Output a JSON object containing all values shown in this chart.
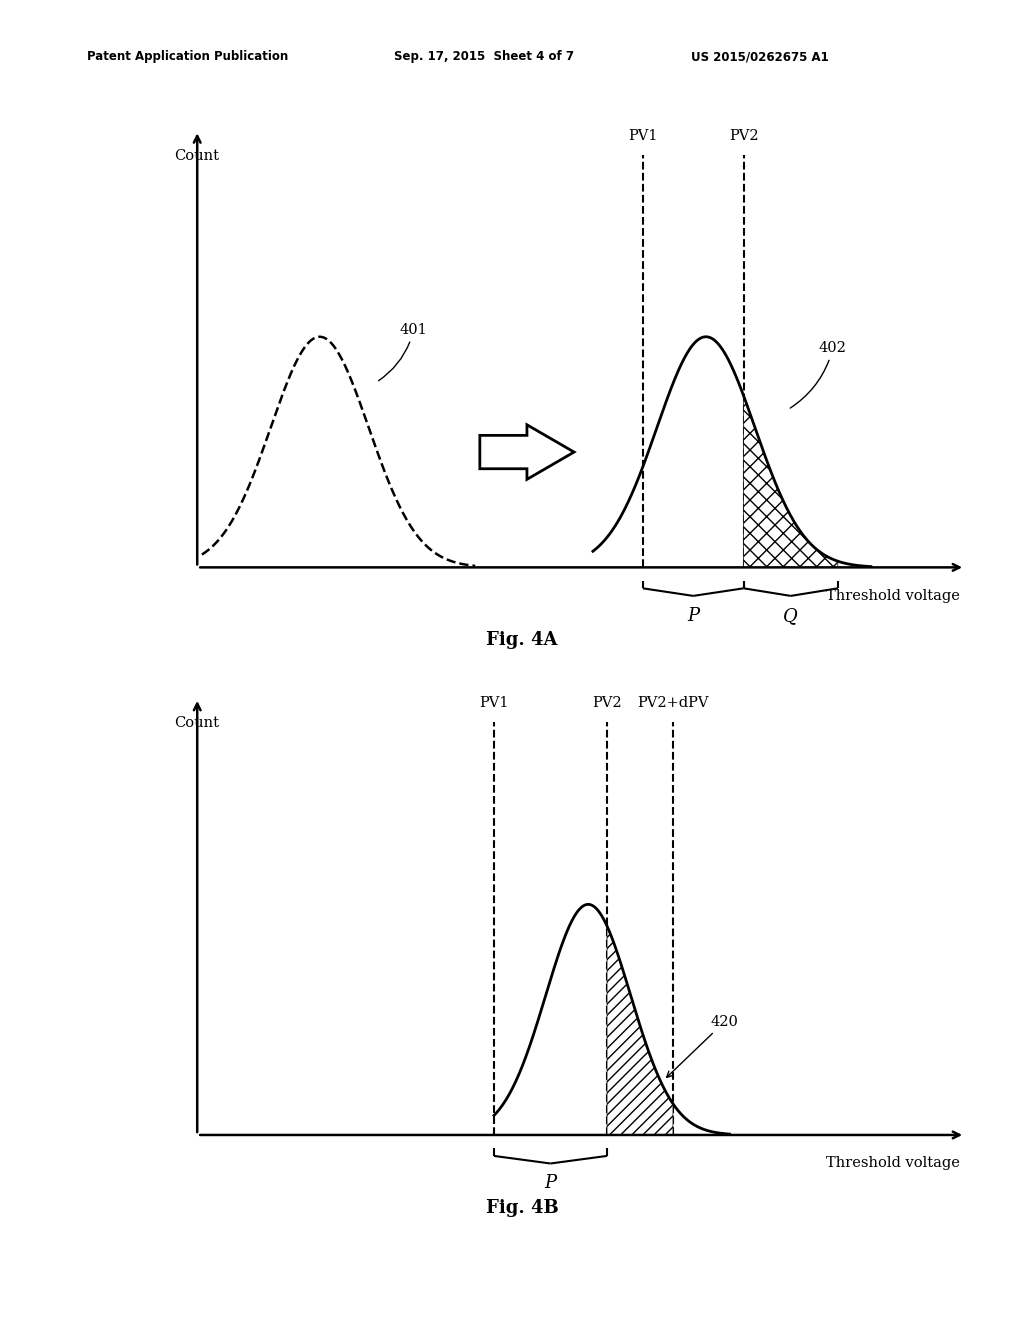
{
  "bg_color": "#ffffff",
  "header_left": "Patent Application Publication",
  "header_mid": "Sep. 17, 2015  Sheet 4 of 7",
  "header_right": "US 2015/0262675 A1",
  "fig4a_title": "Fig. 4A",
  "fig4b_title": "Fig. 4B",
  "count_label": "Count",
  "threshold_label": "Threshold voltage",
  "label_401": "401",
  "label_402": "402",
  "label_420": "420",
  "label_P_4a": "P",
  "label_Q_4a": "Q",
  "label_PV1_4a": "PV1",
  "label_PV2_4a": "PV2",
  "label_PV1_4b": "PV1",
  "label_PV2_4b": "PV2",
  "label_PV2dPV_4b": "PV2+dPV",
  "label_P_4b": "P"
}
